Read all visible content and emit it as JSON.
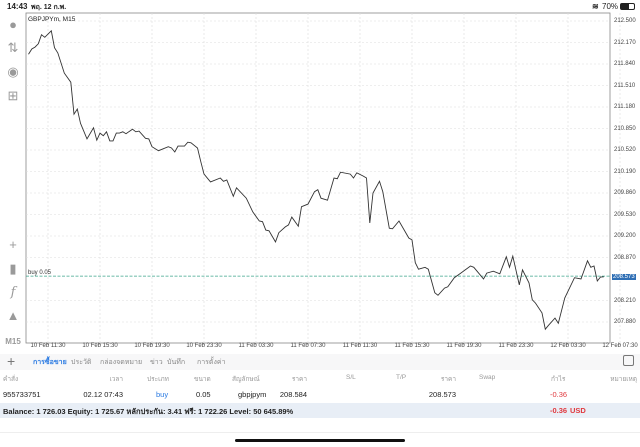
{
  "status_bar": {
    "time": "14:43",
    "date": "พฤ. 12 ก.พ.",
    "battery": "70%",
    "icons": [
      "wifi-icon",
      "battery-icon"
    ]
  },
  "toolbar": {
    "items": [
      "account-icon",
      "trade-arrows-icon",
      "chat-icon",
      "new-order-icon",
      "crosshair-icon",
      "candlestick-icon",
      "indicator-f-icon",
      "objects-icon"
    ],
    "timeframe": "M15"
  },
  "chart": {
    "symbol_label": "GBPJPYm, M15",
    "order_line_label": "buy 0.05",
    "line_color": "#333333",
    "order_line_color": "#3aa38a",
    "current_price_bg": "#2f6fb5"
  },
  "chart_data": {
    "type": "line",
    "title": "GBPJPYm, M15",
    "ylim": [
      207.7,
      212.6
    ],
    "grid": true,
    "y_ticks": [
      "212.500",
      "212.170",
      "211.840",
      "211.510",
      "211.180",
      "210.850",
      "210.520",
      "210.190",
      "209.860",
      "209.530",
      "209.200",
      "208.870",
      "208.210",
      "207.880"
    ],
    "current_price": "208.573",
    "order_line": {
      "label": "buy 0.05",
      "price": 208.584
    },
    "x_ticks": [
      "10 Feb 11:30",
      "10 Feb 15:30",
      "10 Feb 19:30",
      "10 Feb 23:30",
      "11 Feb 03:30",
      "11 Feb 07:30",
      "11 Feb 11:30",
      "11 Feb 15:30",
      "11 Feb 19:30",
      "11 Feb 23:30",
      "12 Feb 03:30",
      "12 Feb 07:30"
    ],
    "series": [
      {
        "points": [
          [
            "10 Feb 10:00",
            211.99
          ],
          [
            "10 Feb 10:15",
            212.07
          ],
          [
            "10 Feb 10:30",
            212.1
          ],
          [
            "10 Feb 10:45",
            212.15
          ],
          [
            "10 Feb 11:00",
            212.29
          ],
          [
            "10 Feb 11:15",
            212.25
          ],
          [
            "10 Feb 11:45",
            212.35
          ],
          [
            "10 Feb 12:00",
            212.09
          ],
          [
            "10 Feb 12:15",
            212.01
          ],
          [
            "10 Feb 12:45",
            211.7
          ],
          [
            "10 Feb 13:15",
            211.56
          ],
          [
            "10 Feb 13:30",
            211.07
          ],
          [
            "10 Feb 13:45",
            211.15
          ],
          [
            "10 Feb 14:00",
            210.93
          ],
          [
            "10 Feb 14:30",
            210.69
          ],
          [
            "10 Feb 15:00",
            210.86
          ],
          [
            "10 Feb 15:15",
            210.67
          ],
          [
            "10 Feb 15:30",
            210.78
          ],
          [
            "10 Feb 15:45",
            210.74
          ],
          [
            "10 Feb 16:00",
            210.8
          ],
          [
            "10 Feb 16:15",
            210.66
          ],
          [
            "10 Feb 16:30",
            210.66
          ],
          [
            "10 Feb 16:45",
            210.78
          ],
          [
            "10 Feb 17:00",
            210.78
          ],
          [
            "10 Feb 17:15",
            210.8
          ],
          [
            "10 Feb 17:30",
            210.77
          ],
          [
            "10 Feb 18:00",
            210.84
          ],
          [
            "10 Feb 18:15",
            210.8
          ],
          [
            "10 Feb 18:30",
            210.81
          ],
          [
            "10 Feb 19:00",
            210.7
          ],
          [
            "10 Feb 19:15",
            210.69
          ],
          [
            "10 Feb 19:30",
            210.57
          ],
          [
            "10 Feb 20:00",
            210.51
          ],
          [
            "10 Feb 20:45",
            210.57
          ],
          [
            "10 Feb 21:00",
            210.55
          ],
          [
            "10 Feb 21:15",
            210.49
          ],
          [
            "10 Feb 21:30",
            210.58
          ],
          [
            "10 Feb 22:00",
            210.58
          ],
          [
            "10 Feb 22:15",
            210.64
          ],
          [
            "10 Feb 22:30",
            210.63
          ],
          [
            "10 Feb 23:00",
            210.55
          ],
          [
            "10 Feb 23:15",
            210.34
          ],
          [
            "10 Feb 23:30",
            210.15
          ],
          [
            "11 Feb 00:00",
            210.03
          ],
          [
            "11 Feb 00:45",
            210.09
          ],
          [
            "11 Feb 01:00",
            210.04
          ],
          [
            "11 Feb 01:15",
            210.06
          ],
          [
            "11 Feb 01:45",
            209.81
          ],
          [
            "11 Feb 02:00",
            209.94
          ],
          [
            "11 Feb 02:45",
            209.78
          ],
          [
            "11 Feb 03:15",
            209.57
          ],
          [
            "11 Feb 03:45",
            209.43
          ],
          [
            "11 Feb 04:00",
            209.42
          ],
          [
            "11 Feb 04:15",
            209.29
          ],
          [
            "11 Feb 04:30",
            209.28
          ],
          [
            "11 Feb 05:00",
            209.11
          ],
          [
            "11 Feb 05:15",
            209.25
          ],
          [
            "11 Feb 05:45",
            209.34
          ],
          [
            "11 Feb 06:00",
            209.37
          ],
          [
            "11 Feb 06:15",
            209.49
          ],
          [
            "11 Feb 06:45",
            209.35
          ],
          [
            "11 Feb 07:00",
            209.65
          ],
          [
            "11 Feb 07:30",
            209.69
          ],
          [
            "11 Feb 08:00",
            209.88
          ],
          [
            "11 Feb 08:15",
            209.91
          ],
          [
            "11 Feb 08:30",
            209.78
          ],
          [
            "11 Feb 09:00",
            209.75
          ],
          [
            "11 Feb 09:30",
            210.09
          ],
          [
            "11 Feb 09:45",
            210.08
          ],
          [
            "11 Feb 10:00",
            210.18
          ],
          [
            "11 Feb 10:45",
            210.15
          ],
          [
            "11 Feb 11:00",
            210.09
          ],
          [
            "11 Feb 11:15",
            210.17
          ],
          [
            "11 Feb 11:45",
            210.12
          ],
          [
            "11 Feb 12:00",
            210.09
          ],
          [
            "11 Feb 12:15",
            209.4
          ],
          [
            "11 Feb 12:30",
            209.86
          ],
          [
            "11 Feb 13:00",
            210.04
          ],
          [
            "11 Feb 13:15",
            209.88
          ],
          [
            "11 Feb 13:45",
            209.32
          ],
          [
            "11 Feb 14:00",
            209.31
          ],
          [
            "11 Feb 14:30",
            209.43
          ],
          [
            "11 Feb 15:15",
            209.17
          ],
          [
            "11 Feb 15:30",
            209.14
          ],
          [
            "11 Feb 15:45",
            208.79
          ],
          [
            "11 Feb 16:00",
            208.69
          ],
          [
            "11 Feb 16:30",
            208.72
          ],
          [
            "11 Feb 16:45",
            208.69
          ],
          [
            "11 Feb 17:15",
            208.33
          ],
          [
            "11 Feb 17:30",
            208.29
          ],
          [
            "11 Feb 18:00",
            208.4
          ],
          [
            "11 Feb 18:15",
            208.42
          ],
          [
            "11 Feb 18:45",
            208.56
          ],
          [
            "11 Feb 19:15",
            208.63
          ],
          [
            "11 Feb 20:00",
            208.74
          ],
          [
            "11 Feb 20:15",
            208.72
          ],
          [
            "11 Feb 20:45",
            208.6
          ],
          [
            "11 Feb 21:00",
            208.54
          ],
          [
            "11 Feb 21:15",
            208.63
          ],
          [
            "11 Feb 21:45",
            208.66
          ],
          [
            "11 Feb 22:15",
            208.62
          ],
          [
            "11 Feb 22:45",
            208.88
          ],
          [
            "11 Feb 23:00",
            208.72
          ],
          [
            "11 Feb 23:15",
            208.89
          ],
          [
            "11 Feb 23:45",
            208.45
          ],
          [
            "12 Feb 00:00",
            208.68
          ],
          [
            "12 Feb 00:30",
            208.48
          ],
          [
            "12 Feb 00:45",
            208.22
          ],
          [
            "12 Feb 01:00",
            208.17
          ],
          [
            "12 Feb 01:30",
            208.02
          ],
          [
            "12 Feb 01:45",
            207.77
          ],
          [
            "12 Feb 02:00",
            207.83
          ],
          [
            "12 Feb 02:30",
            207.94
          ],
          [
            "12 Feb 02:45",
            207.86
          ],
          [
            "12 Feb 03:15",
            208.25
          ],
          [
            "12 Feb 04:00",
            208.56
          ],
          [
            "12 Feb 04:30",
            208.54
          ],
          [
            "12 Feb 05:00",
            208.82
          ],
          [
            "12 Feb 05:15",
            208.72
          ],
          [
            "12 Feb 05:30",
            208.74
          ],
          [
            "12 Feb 05:45",
            208.51
          ],
          [
            "12 Feb 06:00",
            208.57
          ],
          [
            "12 Feb 06:15",
            208.573
          ]
        ]
      }
    ]
  },
  "bottom_tabs": {
    "add": "+",
    "items": [
      "การซื้อขาย",
      "ประวัติ",
      "กล่องจดหมาย",
      "ข่าว",
      "บันทึก",
      "การตั้งค่า"
    ],
    "active": 0
  },
  "table": {
    "headers": [
      "คำสั่ง",
      "เวลา",
      "ประเภท",
      "ขนาด",
      "สัญลักษณ์",
      "ราคา",
      "S/L",
      "T/P",
      "ราคา",
      "Swap",
      "กำไร",
      "หมายเหตุ"
    ],
    "rows": [
      {
        "order": "955733751",
        "time": "02.12 07:43",
        "type": "buy",
        "size": "0.05",
        "symbol": "gbpjpym",
        "open_price": "208.584",
        "sl": "",
        "tp": "",
        "price": "208.573",
        "swap": "",
        "profit": "-0.36",
        "comment": ""
      }
    ]
  },
  "summary": {
    "text": "Balance: 1 726.03 Equity: 1 725.67 หลักประกัน: 3.41 ฟรี: 1 722.26 Level: 50 645.89%",
    "profit": "-0.36",
    "currency": "USD"
  },
  "colors": {
    "accent": "#2a7ae2",
    "loss": "#e0393e",
    "summary_bg": "#e8eef6"
  }
}
